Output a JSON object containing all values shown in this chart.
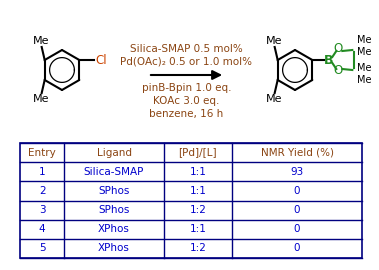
{
  "reaction_text_above": [
    [
      "Silica-SMAP 0.5 mol%",
      "#8B4513"
    ],
    [
      "Pd(OAc)₂ 0.5 or 1.0 mol%",
      "#8B4513"
    ]
  ],
  "reaction_text_below": [
    [
      "pinB-Bpin 1.0 eq.",
      "#8B4513"
    ],
    [
      "KOAc 3.0 eq.",
      "#8B4513"
    ],
    [
      "benzene, 16 h",
      "#8B4513"
    ]
  ],
  "table_headers": [
    "Entry",
    "Ligand",
    "[Pd]/[L]",
    "NMR Yield (%)"
  ],
  "table_data": [
    [
      "1",
      "Silica-SMAP",
      "1:1",
      "93"
    ],
    [
      "2",
      "SPhos",
      "1:1",
      "0"
    ],
    [
      "3",
      "SPhos",
      "1:2",
      "0"
    ],
    [
      "4",
      "XPhos",
      "1:1",
      "0"
    ],
    [
      "5",
      "XPhos",
      "1:2",
      "0"
    ]
  ],
  "header_color": "#8B4513",
  "data_color": "#0000CC",
  "bg_color": "#FFFFFF",
  "table_line_color": "#000080",
  "black": "#000000",
  "cl_color": "#CC4400",
  "green": "#228B22",
  "red": "#CC0000"
}
